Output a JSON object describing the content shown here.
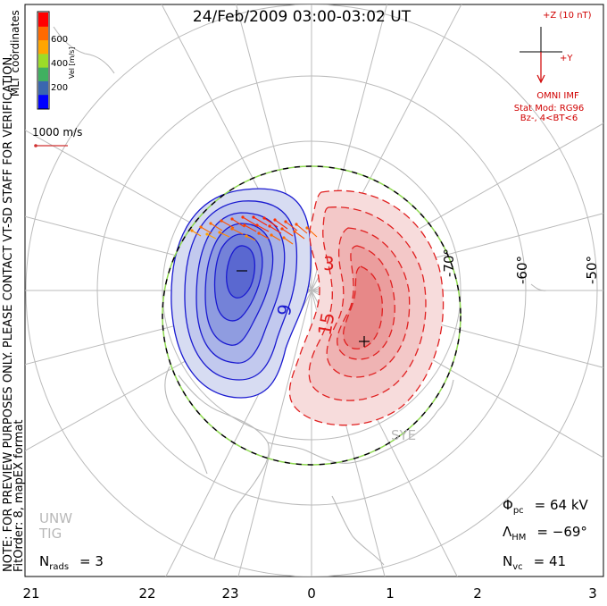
{
  "title": "24/Feb/2009 03:00-03:02 UT",
  "side_note": {
    "line1": "NOTE: FOR PREVIEW PURPOSES ONLY. PLEASE CONTACT VT-SD STAFF FOR VERIFICATION.",
    "line2": "FitOrder: 8, mapEX format"
  },
  "coord_label": "MLT coordinates",
  "velocity_scale": {
    "unit_label": "Vel [m/s]",
    "ticks": [
      "600",
      "400",
      "200"
    ],
    "colors": [
      "#0000ff",
      "#3a66b0",
      "#40b060",
      "#9cdc28",
      "#ffa500",
      "#ff6a00",
      "#ff0000"
    ]
  },
  "reference_vector": "1000 m/s",
  "imf": {
    "top_label": "+Z (10 nT)",
    "right_label": "+Y",
    "source": "OMNI IMF",
    "model_line1": "Stat Mod: RG96",
    "model_line2": "Bz-, 4<BT<6"
  },
  "lat_labels": [
    "-70°",
    "-60°",
    "-50°"
  ],
  "contour_labels": [
    "3",
    "9",
    "15"
  ],
  "mlt_labels": [
    "21",
    "22",
    "23",
    "0",
    "1",
    "2",
    "3"
  ],
  "stations": [
    "SYE",
    "UNW",
    "TIG"
  ],
  "stats": {
    "phi_pc_sym": "Φ",
    "phi_pc_sub": "pc",
    "phi_pc_val": "= 64 kV",
    "lam_sym": "Λ",
    "lam_sub": "HM",
    "lam_val": "= −69°",
    "nvc_sym": "N",
    "nvc_sub": "vc",
    "nvc_val": "= 41",
    "nrads_sym": "N",
    "nrads_sub": "rads",
    "nrads_val": "= 3"
  },
  "colors": {
    "positive_cell": "#ff0000",
    "negative_cell": "#0000c8",
    "boundary_dash": "#8ed850",
    "grid": "#bbbbbb",
    "coast": "#b8b8b8",
    "imf_arrow": "#d00000"
  }
}
